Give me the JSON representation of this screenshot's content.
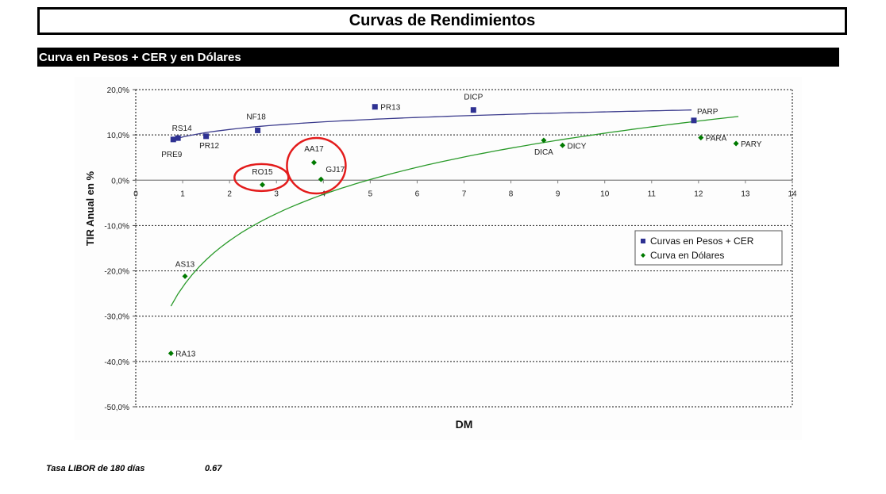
{
  "header": {
    "title": "Curvas de Rendimientos",
    "section": "Curva en Pesos + CER y en Dólares"
  },
  "footer": {
    "libor_label": "Tasa LIBOR de 180 días",
    "libor_value": "0.67"
  },
  "chart_data": {
    "type": "scatter",
    "title": "",
    "xlabel": "DM",
    "ylabel": "TIR Anual en %",
    "xlim": [
      0,
      14
    ],
    "ylim": [
      -50,
      20
    ],
    "x_ticks": [
      "0",
      "1",
      "2",
      "3",
      "4",
      "5",
      "6",
      "7",
      "8",
      "9",
      "10",
      "11",
      "12",
      "13",
      "14"
    ],
    "y_ticks": [
      "20,0%",
      "10,0%",
      "0,0%",
      "-10,0%",
      "-20,0%",
      "-30,0%",
      "-40,0%",
      "-50,0%"
    ],
    "grid": "horizontal dotted",
    "legend_position": "right-middle",
    "series": [
      {
        "name": "Curvas en Pesos + CER",
        "color": "#2e3192",
        "marker": "square",
        "trendline": "logarithmic",
        "trendline_color": "#3a3a8c",
        "points": [
          {
            "label": "PRE9",
            "x": 0.8,
            "y": 9.0
          },
          {
            "label": "RS14",
            "x": 0.9,
            "y": 9.3
          },
          {
            "label": "PR12",
            "x": 1.5,
            "y": 9.7
          },
          {
            "label": "NF18",
            "x": 2.6,
            "y": 11.0
          },
          {
            "label": "PR13",
            "x": 5.1,
            "y": 16.2
          },
          {
            "label": "DICP",
            "x": 7.2,
            "y": 15.5
          },
          {
            "label": "PARP",
            "x": 11.9,
            "y": 13.2
          }
        ]
      },
      {
        "name": "Curva en Dólares",
        "color": "#007a00",
        "marker": "diamond",
        "trendline": "logarithmic",
        "trendline_color": "#2a9a2a",
        "points": [
          {
            "label": "RA13",
            "x": 0.75,
            "y": -38.2
          },
          {
            "label": "AS13",
            "x": 1.05,
            "y": -21.2
          },
          {
            "label": "RO15",
            "x": 2.7,
            "y": -1.0
          },
          {
            "label": "AA17",
            "x": 3.8,
            "y": 3.9
          },
          {
            "label": "GJ17",
            "x": 3.95,
            "y": 0.2
          },
          {
            "label": "DICA",
            "x": 8.7,
            "y": 8.8
          },
          {
            "label": "DICY",
            "x": 9.1,
            "y": 7.7
          },
          {
            "label": "PARA",
            "x": 12.05,
            "y": 9.4
          },
          {
            "label": "PARY",
            "x": 12.8,
            "y": 8.1
          }
        ]
      }
    ],
    "annotations": [
      {
        "type": "red-circle",
        "around": [
          "RO15"
        ]
      },
      {
        "type": "red-circle",
        "around": [
          "AA17",
          "GJ17"
        ]
      }
    ]
  }
}
